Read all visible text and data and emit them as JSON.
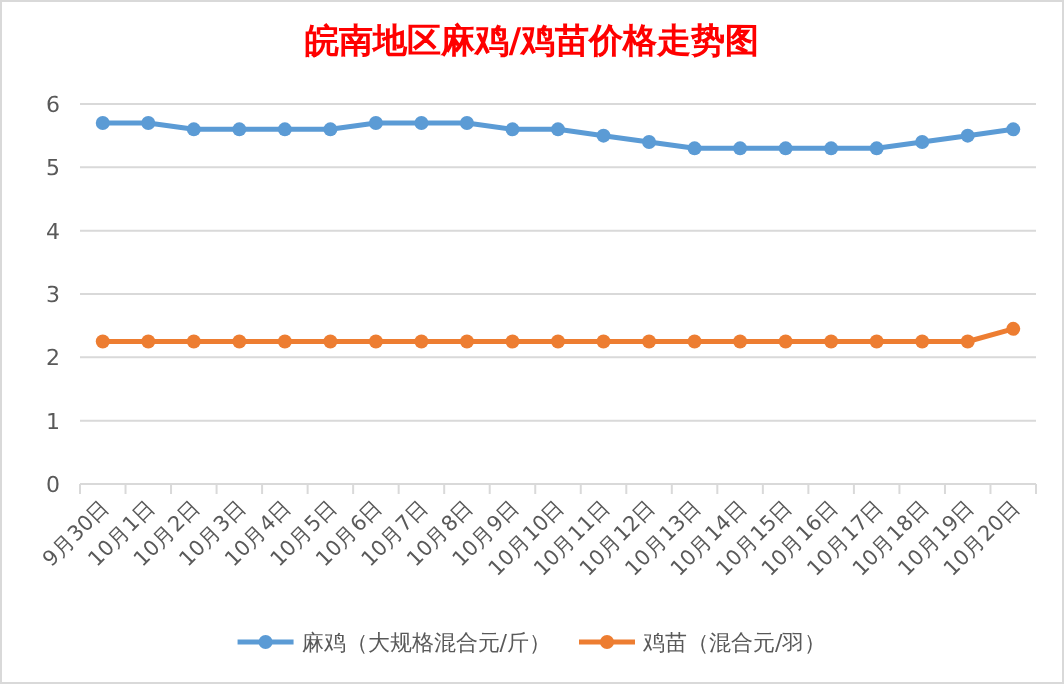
{
  "chart_data": {
    "type": "line",
    "title": "皖南地区麻鸡/鸡苗价格走势图",
    "categories": [
      "9月30日",
      "10月1日",
      "10月2日",
      "10月3日",
      "10月4日",
      "10月5日",
      "10月6日",
      "10月7日",
      "10月8日",
      "10月9日",
      "10月10日",
      "10月11日",
      "10月12日",
      "10月13日",
      "10月14日",
      "10月15日",
      "10月16日",
      "10月17日",
      "10月18日",
      "10月19日",
      "10月20日"
    ],
    "series": [
      {
        "name": "麻鸡（大规格混合元/斤）",
        "color": "#5b9bd5",
        "values": [
          5.7,
          5.7,
          5.6,
          5.6,
          5.6,
          5.6,
          5.7,
          5.7,
          5.7,
          5.6,
          5.6,
          5.5,
          5.4,
          5.3,
          5.3,
          5.3,
          5.3,
          5.3,
          5.4,
          5.5,
          5.6
        ]
      },
      {
        "name": "鸡苗（混合元/羽）",
        "color": "#ed7d31",
        "values": [
          2.25,
          2.25,
          2.25,
          2.25,
          2.25,
          2.25,
          2.25,
          2.25,
          2.25,
          2.25,
          2.25,
          2.25,
          2.25,
          2.25,
          2.25,
          2.25,
          2.25,
          2.25,
          2.25,
          2.25,
          2.45
        ]
      }
    ],
    "ylim": [
      0,
      6
    ],
    "yticks": [
      0,
      1,
      2,
      3,
      4,
      5,
      6
    ],
    "grid": "y",
    "legend": "bottom",
    "marker": "circle"
  }
}
